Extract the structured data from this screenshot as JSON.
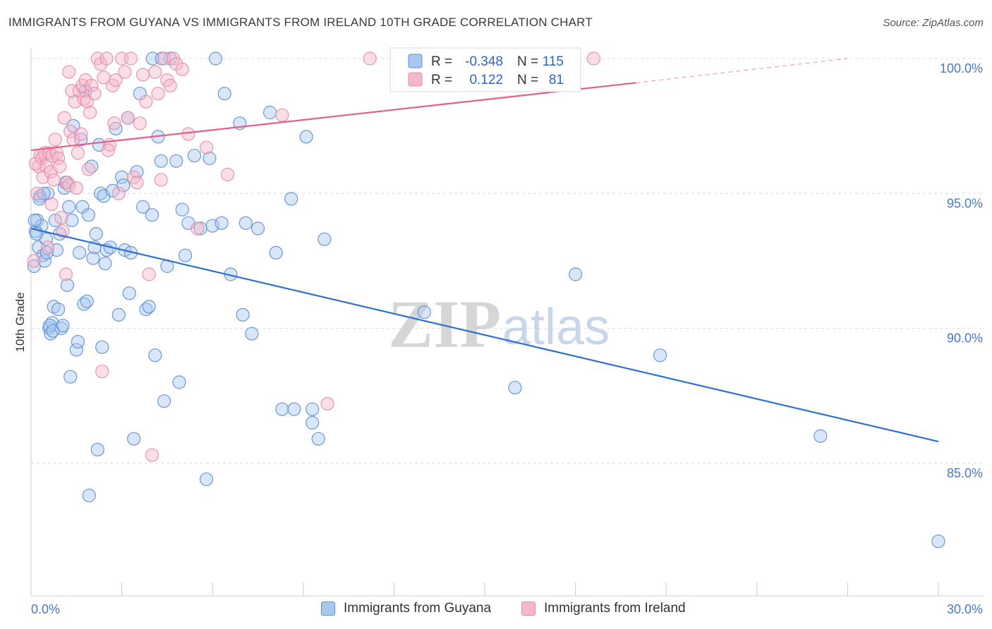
{
  "header": {
    "title": "IMMIGRANTS FROM GUYANA VS IMMIGRANTS FROM IRELAND 10TH GRADE CORRELATION CHART",
    "source": "Source: ZipAtlas.com"
  },
  "watermark": {
    "zip": "ZIP",
    "atlas": "atlas"
  },
  "legend_box": {
    "rows": [
      {
        "r_label": "R =",
        "r_value": "-0.348",
        "n_label": "N =",
        "n_value": "115"
      },
      {
        "r_label": "R =",
        "r_value": "0.122",
        "n_label": "N =",
        "n_value": "81"
      }
    ]
  },
  "colors": {
    "guyana_fill": "#a9c8f0",
    "guyana_stroke": "#5b8fd6",
    "guyana_line": "#2e6fd0",
    "ireland_fill": "#f5b8ca",
    "ireland_stroke": "#e88aa6",
    "ireland_line": "#e0608a"
  },
  "chart_data": {
    "type": "scatter",
    "ylabel": "10th Grade",
    "xlim": [
      0,
      30
    ],
    "ylim": [
      80.5,
      100.8
    ],
    "x_tick_labels": [
      "0.0%",
      "30.0%"
    ],
    "y_ticks": [
      85,
      90,
      95,
      100
    ],
    "y_tick_labels": [
      "85.0%",
      "90.0%",
      "95.0%",
      "100.0%"
    ],
    "grid": true,
    "legend_position": "bottom",
    "series": [
      {
        "name": "Immigrants from Guyana",
        "trend": {
          "x": [
            0,
            30
          ],
          "y": [
            93.7,
            85.8
          ]
        },
        "points": [
          [
            0.1,
            92.3
          ],
          [
            0.15,
            93.6
          ],
          [
            0.2,
            94.0
          ],
          [
            0.25,
            93.0
          ],
          [
            0.3,
            94.9
          ],
          [
            0.35,
            93.8
          ],
          [
            0.4,
            92.7
          ],
          [
            0.45,
            92.5
          ],
          [
            0.5,
            93.3
          ],
          [
            0.55,
            95.0
          ],
          [
            0.6,
            90.0
          ],
          [
            0.65,
            89.8
          ],
          [
            0.7,
            90.2
          ],
          [
            0.75,
            90.8
          ],
          [
            0.8,
            94.0
          ],
          [
            0.85,
            92.9
          ],
          [
            0.9,
            90.7
          ],
          [
            0.95,
            93.5
          ],
          [
            1.0,
            90.0
          ],
          [
            1.05,
            90.1
          ],
          [
            1.1,
            95.2
          ],
          [
            1.15,
            95.4
          ],
          [
            1.2,
            91.6
          ],
          [
            1.25,
            94.5
          ],
          [
            1.3,
            88.2
          ],
          [
            1.35,
            94.0
          ],
          [
            1.4,
            97.5
          ],
          [
            1.5,
            89.2
          ],
          [
            1.55,
            89.5
          ],
          [
            1.6,
            92.8
          ],
          [
            1.65,
            97.0
          ],
          [
            1.7,
            94.5
          ],
          [
            1.75,
            90.9
          ],
          [
            1.8,
            98.8
          ],
          [
            1.85,
            91.0
          ],
          [
            1.9,
            94.2
          ],
          [
            2.0,
            96.0
          ],
          [
            2.05,
            92.6
          ],
          [
            2.1,
            93.0
          ],
          [
            2.15,
            93.5
          ],
          [
            2.2,
            85.5
          ],
          [
            2.25,
            96.8
          ],
          [
            2.3,
            95.0
          ],
          [
            2.35,
            89.3
          ],
          [
            2.4,
            94.9
          ],
          [
            2.45,
            92.4
          ],
          [
            2.5,
            92.9
          ],
          [
            2.7,
            95.1
          ],
          [
            2.8,
            97.4
          ],
          [
            2.9,
            90.5
          ],
          [
            3.0,
            95.6
          ],
          [
            3.05,
            95.3
          ],
          [
            3.1,
            92.9
          ],
          [
            3.2,
            97.8
          ],
          [
            3.25,
            91.3
          ],
          [
            3.3,
            92.8
          ],
          [
            3.4,
            85.9
          ],
          [
            3.5,
            95.8
          ],
          [
            3.6,
            98.7
          ],
          [
            3.7,
            94.5
          ],
          [
            3.8,
            90.7
          ],
          [
            3.9,
            90.8
          ],
          [
            4.0,
            94.2
          ],
          [
            4.1,
            89.0
          ],
          [
            4.2,
            97.1
          ],
          [
            4.3,
            96.2
          ],
          [
            4.4,
            87.3
          ],
          [
            4.5,
            92.3
          ],
          [
            4.6,
            100.0
          ],
          [
            4.8,
            96.2
          ],
          [
            4.9,
            88.0
          ],
          [
            5.0,
            94.4
          ],
          [
            5.1,
            92.7
          ],
          [
            5.2,
            93.9
          ],
          [
            5.4,
            96.4
          ],
          [
            5.6,
            93.7
          ],
          [
            5.8,
            84.4
          ],
          [
            5.9,
            96.3
          ],
          [
            6.0,
            93.8
          ],
          [
            6.1,
            100.0
          ],
          [
            6.3,
            93.9
          ],
          [
            6.4,
            98.7
          ],
          [
            6.6,
            92.0
          ],
          [
            6.9,
            97.6
          ],
          [
            7.0,
            90.5
          ],
          [
            7.1,
            93.9
          ],
          [
            7.3,
            89.8
          ],
          [
            7.5,
            93.7
          ],
          [
            7.9,
            98.0
          ],
          [
            8.1,
            92.8
          ],
          [
            8.3,
            87.0
          ],
          [
            8.6,
            94.8
          ],
          [
            8.7,
            87.0
          ],
          [
            9.1,
            97.1
          ],
          [
            9.3,
            87.0
          ],
          [
            9.3,
            86.5
          ],
          [
            9.5,
            85.9
          ],
          [
            9.7,
            93.3
          ],
          [
            13.0,
            90.6
          ],
          [
            16.0,
            87.8
          ],
          [
            18.0,
            92.0
          ],
          [
            20.8,
            89.0
          ],
          [
            26.1,
            86.0
          ],
          [
            30.0,
            82.1
          ],
          [
            0.12,
            94.0
          ],
          [
            0.18,
            93.5
          ],
          [
            0.28,
            94.8
          ],
          [
            0.42,
            95.0
          ],
          [
            0.52,
            92.8
          ],
          [
            0.62,
            90.1
          ],
          [
            0.72,
            89.9
          ],
          [
            1.92,
            83.8
          ],
          [
            2.62,
            93.0
          ],
          [
            4.02,
            100.0
          ],
          [
            4.32,
            100.0
          ]
        ]
      },
      {
        "name": "Immigrants from Ireland",
        "trend": {
          "x": [
            0,
            20
          ],
          "y": [
            96.6,
            99.1
          ]
        },
        "trend_dashed": {
          "x": [
            20,
            27
          ],
          "y": [
            99.1,
            100.0
          ]
        },
        "points": [
          [
            0.1,
            92.5
          ],
          [
            0.2,
            95.0
          ],
          [
            0.25,
            96.0
          ],
          [
            0.3,
            96.4
          ],
          [
            0.35,
            96.3
          ],
          [
            0.4,
            95.6
          ],
          [
            0.45,
            96.5
          ],
          [
            0.5,
            96.0
          ],
          [
            0.55,
            93.0
          ],
          [
            0.6,
            96.5
          ],
          [
            0.65,
            95.8
          ],
          [
            0.7,
            96.4
          ],
          [
            0.75,
            95.5
          ],
          [
            0.8,
            97.0
          ],
          [
            0.85,
            96.5
          ],
          [
            0.9,
            96.3
          ],
          [
            0.95,
            96.0
          ],
          [
            1.0,
            94.1
          ],
          [
            1.05,
            93.6
          ],
          [
            1.1,
            97.8
          ],
          [
            1.15,
            92.0
          ],
          [
            1.2,
            95.4
          ],
          [
            1.25,
            95.3
          ],
          [
            1.3,
            97.3
          ],
          [
            1.35,
            98.8
          ],
          [
            1.4,
            97.0
          ],
          [
            1.45,
            98.4
          ],
          [
            1.5,
            95.2
          ],
          [
            1.55,
            96.5
          ],
          [
            1.6,
            98.8
          ],
          [
            1.65,
            97.2
          ],
          [
            1.7,
            99.0
          ],
          [
            1.75,
            98.5
          ],
          [
            1.8,
            99.2
          ],
          [
            1.85,
            98.4
          ],
          [
            1.9,
            95.9
          ],
          [
            1.95,
            98.0
          ],
          [
            2.0,
            99.0
          ],
          [
            2.1,
            98.7
          ],
          [
            2.2,
            100.0
          ],
          [
            2.3,
            99.8
          ],
          [
            2.4,
            99.3
          ],
          [
            2.5,
            100.0
          ],
          [
            2.6,
            96.8
          ],
          [
            2.7,
            99.0
          ],
          [
            2.8,
            99.2
          ],
          [
            2.9,
            95.0
          ],
          [
            3.0,
            100.0
          ],
          [
            3.1,
            99.5
          ],
          [
            3.2,
            97.8
          ],
          [
            3.3,
            100.0
          ],
          [
            3.4,
            95.6
          ],
          [
            3.5,
            95.4
          ],
          [
            3.6,
            97.6
          ],
          [
            3.7,
            99.4
          ],
          [
            3.8,
            98.4
          ],
          [
            3.9,
            92.0
          ],
          [
            4.0,
            85.3
          ],
          [
            4.1,
            99.5
          ],
          [
            4.2,
            98.7
          ],
          [
            4.3,
            95.5
          ],
          [
            4.4,
            100.0
          ],
          [
            4.5,
            99.2
          ],
          [
            4.6,
            99.0
          ],
          [
            4.7,
            100.0
          ],
          [
            4.8,
            99.8
          ],
          [
            5.0,
            99.6
          ],
          [
            5.2,
            97.2
          ],
          [
            5.5,
            93.7
          ],
          [
            5.8,
            96.7
          ],
          [
            6.5,
            95.7
          ],
          [
            8.3,
            97.9
          ],
          [
            9.8,
            87.2
          ],
          [
            11.2,
            100.0
          ],
          [
            18.6,
            100.0
          ],
          [
            2.35,
            88.4
          ],
          [
            1.25,
            99.5
          ],
          [
            2.55,
            96.6
          ],
          [
            2.75,
            97.6
          ],
          [
            0.15,
            96.1
          ],
          [
            0.68,
            94.6
          ]
        ]
      }
    ]
  },
  "bottom_legend": {
    "items": [
      "Immigrants from Guyana",
      "Immigrants from Ireland"
    ]
  }
}
